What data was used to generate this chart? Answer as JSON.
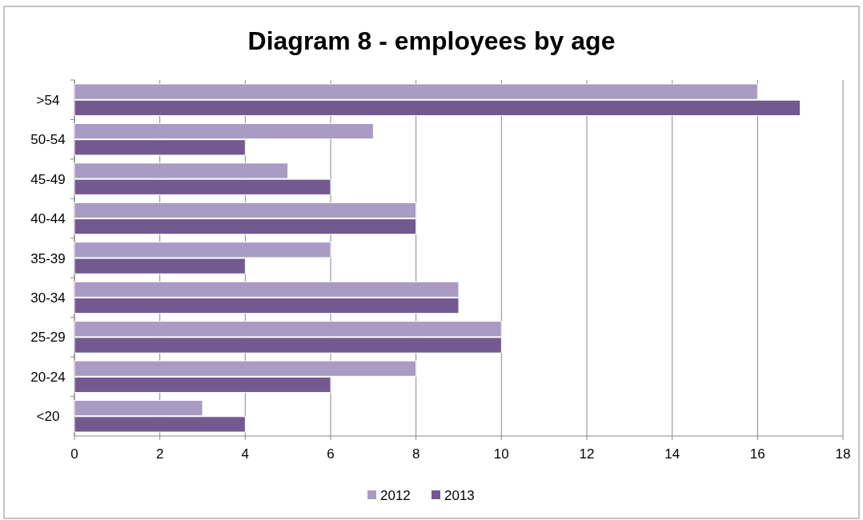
{
  "chart_data": {
    "type": "bar",
    "orientation": "horizontal",
    "title": "Diagram 8 - employees by age",
    "categories": [
      ">54",
      "50-54",
      "45-49",
      "40-44",
      "35-39",
      "30-34",
      "25-29",
      "20-24",
      "<20"
    ],
    "series": [
      {
        "name": "2012",
        "color": "#a99bc3",
        "values": [
          16,
          7,
          5,
          8,
          6,
          9,
          10,
          8,
          3
        ]
      },
      {
        "name": "2013",
        "color": "#725a90",
        "values": [
          17,
          4,
          6,
          8,
          4,
          9,
          10,
          6,
          4
        ]
      }
    ],
    "xlim": [
      0,
      18
    ],
    "xticks": [
      0,
      2,
      4,
      6,
      8,
      10,
      12,
      14,
      16,
      18
    ],
    "grid": "x",
    "legend": "bottom"
  }
}
